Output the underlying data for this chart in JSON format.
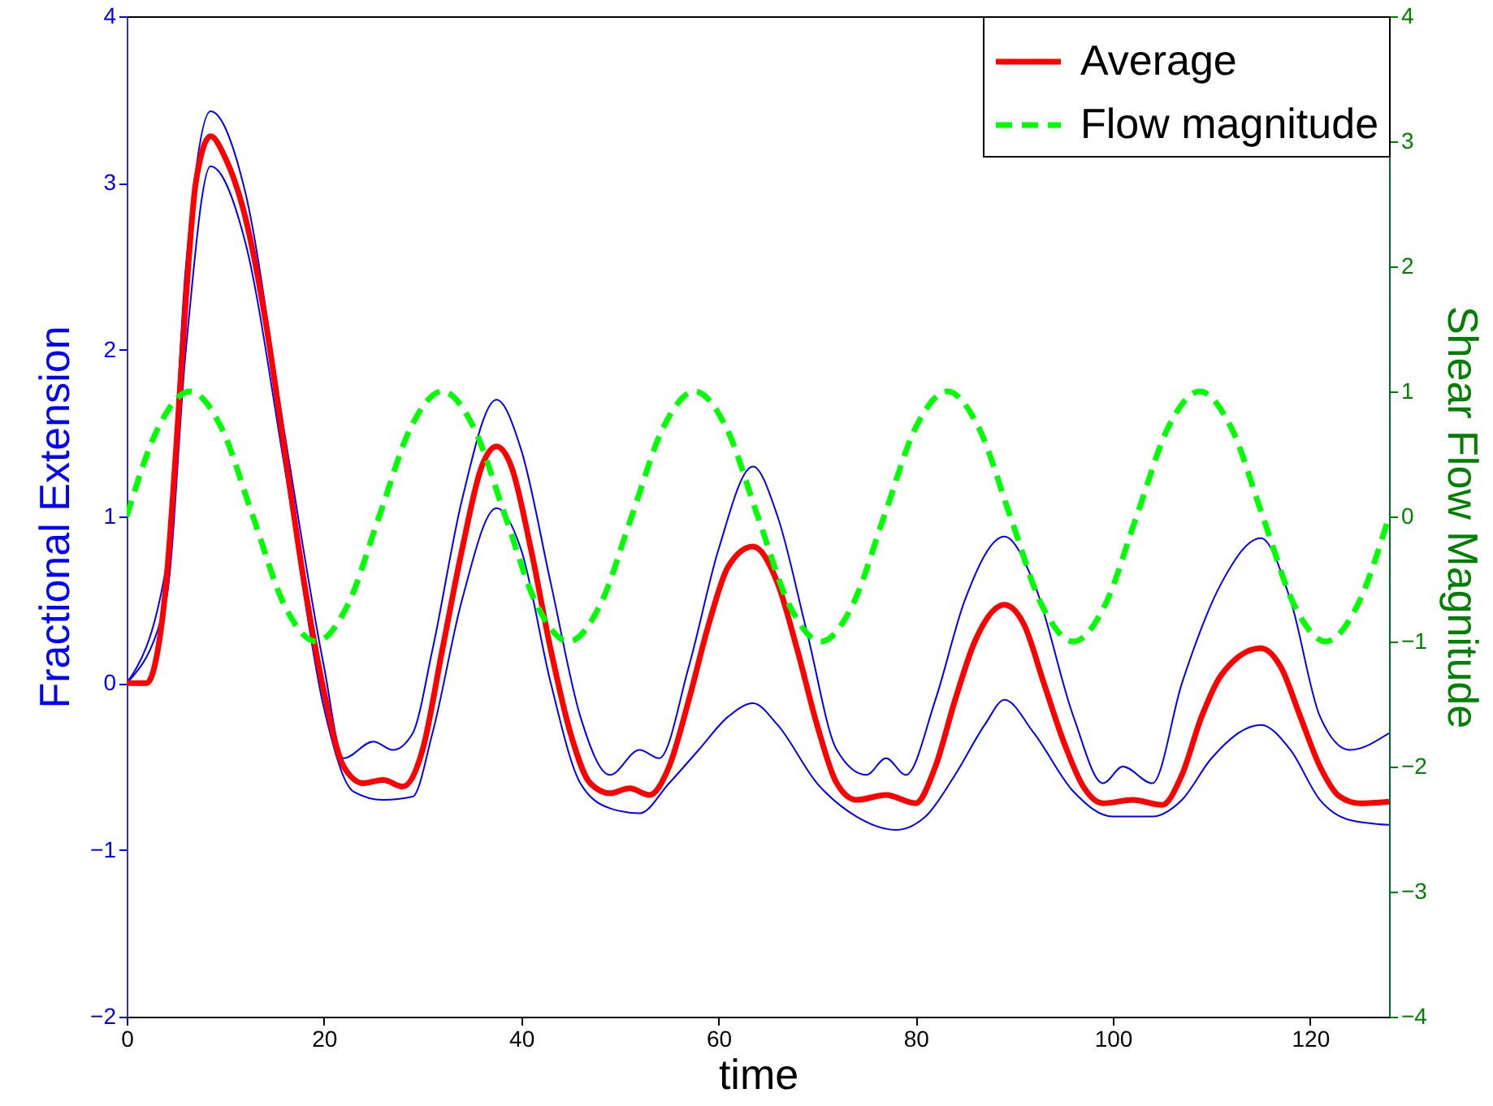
{
  "chart_data": {
    "type": "line",
    "xlabel": "time",
    "ylabel": "Fractional Extension",
    "y2label": "Shear Flow Magnitude",
    "xlim": [
      0,
      128
    ],
    "xticks": [
      0,
      20,
      40,
      60,
      80,
      100,
      120
    ],
    "ylim": [
      -2,
      4
    ],
    "yticks": [
      -2,
      -1,
      0,
      1,
      2,
      3,
      4
    ],
    "y2lim": [
      -4,
      4
    ],
    "y2ticks": [
      -4,
      -3,
      -2,
      -1,
      0,
      1,
      2,
      3,
      4
    ],
    "legend": "top right",
    "grid": false,
    "series": [
      {
        "color": "#0000ff",
        "line_style": "solid",
        "x": [
          0,
          4,
          6,
          8.5,
          12,
          16,
          20,
          22,
          25,
          27,
          29,
          31,
          34,
          37.5,
          40,
          43,
          46,
          49,
          52,
          54,
          57,
          60,
          63.5,
          66,
          69,
          72,
          75,
          77,
          79,
          82,
          85,
          89,
          92,
          96,
          99,
          101,
          104,
          107,
          111,
          115,
          118,
          121,
          124,
          128
        ],
        "values": [
          0,
          0.7,
          2.5,
          3.43,
          2.95,
          1.5,
          0.1,
          -0.45,
          -0.35,
          -0.4,
          -0.3,
          0.2,
          1.1,
          1.7,
          1.4,
          0.6,
          -0.2,
          -0.55,
          -0.4,
          -0.45,
          0.1,
          0.8,
          1.3,
          1.0,
          0.3,
          -0.4,
          -0.55,
          -0.45,
          -0.55,
          -0.1,
          0.5,
          0.88,
          0.6,
          -0.2,
          -0.6,
          -0.5,
          -0.6,
          0.0,
          0.6,
          0.87,
          0.5,
          -0.2,
          -0.4,
          -0.3
        ]
      },
      {
        "color": "#0000ff",
        "line_style": "solid",
        "x": [
          0,
          4,
          6,
          8.5,
          12,
          16,
          20,
          23,
          26,
          29,
          31,
          34,
          37.5,
          40,
          43,
          46,
          49,
          52,
          55,
          58,
          61,
          63.5,
          66,
          70,
          74,
          78,
          81,
          84,
          87,
          89,
          92,
          96,
          100,
          104,
          107,
          110,
          115,
          118,
          121,
          124,
          128
        ],
        "values": [
          0,
          0.5,
          2.0,
          3.1,
          2.65,
          1.3,
          -0.15,
          -0.65,
          -0.7,
          -0.68,
          -0.3,
          0.5,
          1.05,
          0.8,
          0.0,
          -0.6,
          -0.75,
          -0.78,
          -0.6,
          -0.4,
          -0.2,
          -0.12,
          -0.25,
          -0.6,
          -0.8,
          -0.88,
          -0.8,
          -0.55,
          -0.25,
          -0.1,
          -0.3,
          -0.65,
          -0.8,
          -0.8,
          -0.7,
          -0.45,
          -0.25,
          -0.4,
          -0.7,
          -0.82,
          -0.85
        ]
      },
      {
        "name": "Average",
        "color": "#ff0000",
        "line_style": "solid",
        "x": [
          0,
          2,
          3,
          4,
          5,
          6,
          7,
          8.5,
          10,
          12,
          14,
          16,
          18,
          20,
          22,
          24,
          26,
          28,
          30,
          32,
          34,
          36,
          37.5,
          39,
          41,
          43,
          45,
          47,
          49,
          51,
          53,
          55,
          57,
          59,
          61,
          63.5,
          66,
          68,
          70,
          72,
          74,
          77,
          80,
          82,
          84,
          86,
          89,
          91,
          93,
          95,
          97,
          99,
          102,
          105,
          107,
          109,
          111,
          115,
          117,
          119,
          121,
          123,
          125,
          128
        ],
        "values": [
          0,
          0,
          0.15,
          0.6,
          1.4,
          2.3,
          3.0,
          3.28,
          3.15,
          2.8,
          2.2,
          1.4,
          0.6,
          -0.05,
          -0.5,
          -0.6,
          -0.58,
          -0.62,
          -0.4,
          0.2,
          0.8,
          1.3,
          1.42,
          1.3,
          0.8,
          0.2,
          -0.3,
          -0.6,
          -0.66,
          -0.63,
          -0.67,
          -0.5,
          -0.1,
          0.35,
          0.7,
          0.82,
          0.6,
          0.2,
          -0.25,
          -0.6,
          -0.7,
          -0.67,
          -0.72,
          -0.5,
          -0.1,
          0.25,
          0.47,
          0.35,
          0,
          -0.35,
          -0.62,
          -0.72,
          -0.7,
          -0.73,
          -0.55,
          -0.2,
          0.05,
          0.21,
          0.1,
          -0.2,
          -0.5,
          -0.68,
          -0.72,
          -0.71
        ]
      },
      {
        "name": "Flow magnitude",
        "color": "#00ff00",
        "line_style": "dashed",
        "axis": "y2",
        "x": [
          0,
          3.2,
          6.4,
          9.6,
          12.8,
          16,
          19.2,
          22.4,
          25.6,
          28.8,
          32,
          35.2,
          38.4,
          41.6,
          44.8,
          48,
          51.2,
          54.4,
          57.6,
          60.8,
          64,
          67.2,
          70.4,
          73.6,
          76.8,
          80,
          83.2,
          86.4,
          89.6,
          92.8,
          96,
          99.2,
          102.4,
          105.6,
          108.8,
          112,
          115.2,
          118.4,
          121.6,
          124.8,
          128
        ],
        "values": [
          0,
          0.71,
          1,
          0.71,
          0,
          -0.71,
          -1,
          -0.71,
          0,
          0.71,
          1,
          0.71,
          0,
          -0.71,
          -1,
          -0.71,
          0,
          0.71,
          1,
          0.71,
          0,
          -0.71,
          -1,
          -0.71,
          0,
          0.71,
          1,
          0.71,
          0,
          -0.71,
          -1,
          -0.71,
          0,
          0.71,
          1,
          0.71,
          0,
          -0.71,
          -1,
          -0.71,
          0
        ]
      }
    ]
  }
}
